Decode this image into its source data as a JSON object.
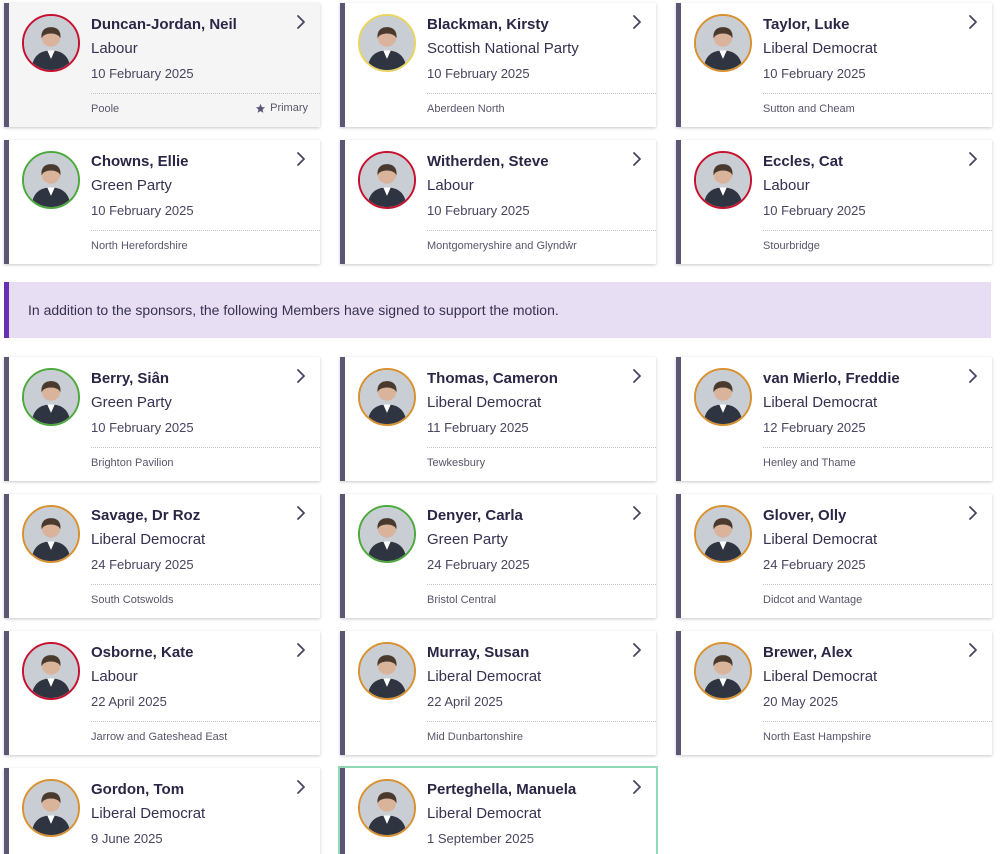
{
  "sponsors": [
    {
      "name": "Duncan-Jordan, Neil",
      "party": "Labour",
      "date": "10 February 2025",
      "constituency": "Poole",
      "party_color": "#c8102e",
      "primary_label": "Primary",
      "highlight": true
    },
    {
      "name": "Blackman, Kirsty",
      "party": "Scottish National Party",
      "date": "10 February 2025",
      "constituency": "Aberdeen North",
      "party_color": "#e9d460"
    },
    {
      "name": "Taylor, Luke",
      "party": "Liberal Democrat",
      "date": "10 February 2025",
      "constituency": "Sutton and Cheam",
      "party_color": "#d9912f"
    },
    {
      "name": "Chowns, Ellie",
      "party": "Green Party",
      "date": "10 February 2025",
      "constituency": "North Herefordshire",
      "party_color": "#4caa3c"
    },
    {
      "name": "Witherden, Steve",
      "party": "Labour",
      "date": "10 February 2025",
      "constituency": "Montgomeryshire and Glyndŵr",
      "party_color": "#c8102e"
    },
    {
      "name": "Eccles, Cat",
      "party": "Labour",
      "date": "10 February 2025",
      "constituency": "Stourbridge",
      "party_color": "#c8102e"
    }
  ],
  "notice": {
    "text": "In addition to the sponsors, the following Members have signed to support the motion."
  },
  "supporters": [
    {
      "name": "Berry, Siân",
      "party": "Green Party",
      "date": "10 February 2025",
      "constituency": "Brighton Pavilion",
      "party_color": "#4caa3c"
    },
    {
      "name": "Thomas, Cameron",
      "party": "Liberal Democrat",
      "date": "11 February 2025",
      "constituency": "Tewkesbury",
      "party_color": "#d9912f"
    },
    {
      "name": "van Mierlo, Freddie",
      "party": "Liberal Democrat",
      "date": "12 February 2025",
      "constituency": "Henley and Thame",
      "party_color": "#d9912f"
    },
    {
      "name": "Savage, Dr Roz",
      "party": "Liberal Democrat",
      "date": "24 February 2025",
      "constituency": "South Cotswolds",
      "party_color": "#d9912f"
    },
    {
      "name": "Denyer, Carla",
      "party": "Green Party",
      "date": "24 February 2025",
      "constituency": "Bristol Central",
      "party_color": "#4caa3c"
    },
    {
      "name": "Glover, Olly",
      "party": "Liberal Democrat",
      "date": "24 February 2025",
      "constituency": "Didcot and Wantage",
      "party_color": "#d9912f"
    },
    {
      "name": "Osborne, Kate",
      "party": "Labour",
      "date": "22 April 2025",
      "constituency": "Jarrow and Gateshead East",
      "party_color": "#c8102e"
    },
    {
      "name": "Murray, Susan",
      "party": "Liberal Democrat",
      "date": "22 April 2025",
      "constituency": "Mid Dunbartonshire",
      "party_color": "#d9912f"
    },
    {
      "name": "Brewer, Alex",
      "party": "Liberal Democrat",
      "date": "20 May 2025",
      "constituency": "North East Hampshire",
      "party_color": "#d9912f"
    },
    {
      "name": "Gordon, Tom",
      "party": "Liberal Democrat",
      "date": "9 June 2025",
      "constituency": "",
      "party_color": "#d9912f"
    },
    {
      "name": "Perteghella, Manuela",
      "party": "Liberal Democrat",
      "date": "1 September 2025",
      "constituency": "",
      "party_color": "#d9912f",
      "focused": true
    }
  ],
  "icons": {
    "chevron": "chevron-right-icon",
    "star": "star-icon",
    "avatar": "member-portrait"
  }
}
